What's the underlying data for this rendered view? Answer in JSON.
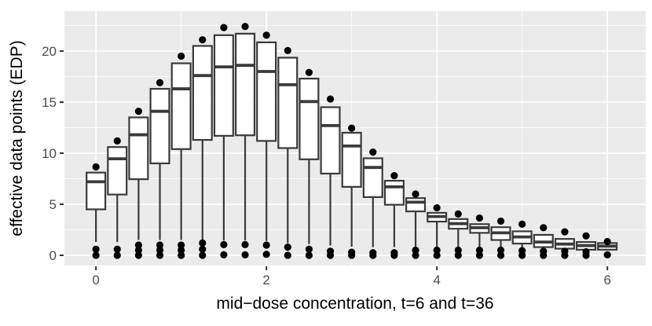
{
  "chart_data": {
    "type": "boxplot",
    "title": "",
    "xlabel": "mid−dose concentration, t=6 and t=36",
    "ylabel": "effective data points (EDP)",
    "xlim": [
      -0.37,
      6.45
    ],
    "ylim": [
      -1.0,
      23.92
    ],
    "x_ticks": [
      0,
      2,
      4,
      6
    ],
    "x_minor_gridlines": [
      1,
      3,
      5
    ],
    "y_ticks": [
      0,
      5,
      10,
      15,
      20
    ],
    "y_minor_gridlines": [
      2.5,
      7.5,
      12.5,
      17.5,
      22.5
    ],
    "grid": "on",
    "legend": "none",
    "box_width": 0.22,
    "colors": {
      "panel_bg": "#EBEBEB",
      "grid": "#FFFFFF",
      "box_border": "#3A3A3A",
      "box_fill": "#FFFFFF",
      "median": "#3A3A3A",
      "outlier_point": "#000000",
      "tick_mark": "#333333",
      "tick_label": "#4D4D4D",
      "axis_title": "#000000"
    },
    "boxes": [
      {
        "x": 0.0,
        "q1": 4.5,
        "median": 7.2,
        "q3": 8.1,
        "whisker_low": 1.3,
        "outlier_high": 8.65,
        "outliers_low": [
          0.6,
          0.0
        ]
      },
      {
        "x": 0.25,
        "q1": 5.95,
        "median": 9.45,
        "q3": 10.6,
        "whisker_low": 1.3,
        "outlier_high": 11.2,
        "outliers_low": [
          0.6,
          0.0
        ]
      },
      {
        "x": 0.5,
        "q1": 7.45,
        "median": 11.8,
        "q3": 13.5,
        "whisker_low": 1.5,
        "outlier_high": 14.1,
        "outliers_low": [
          1.0,
          0.5,
          0.0
        ]
      },
      {
        "x": 0.75,
        "q1": 9.0,
        "median": 14.1,
        "q3": 16.3,
        "whisker_low": 1.5,
        "outlier_high": 16.9,
        "outliers_low": [
          1.0,
          0.5,
          0.0
        ]
      },
      {
        "x": 1.0,
        "q1": 10.4,
        "median": 16.3,
        "q3": 18.8,
        "whisker_low": 1.5,
        "outlier_high": 19.5,
        "outliers_low": [
          1.0,
          0.5,
          0.0
        ]
      },
      {
        "x": 1.25,
        "q1": 11.3,
        "median": 17.6,
        "q3": 20.5,
        "whisker_low": 1.5,
        "outlier_high": 21.1,
        "outliers_low": [
          1.2,
          0.6,
          0.0
        ]
      },
      {
        "x": 1.5,
        "q1": 11.7,
        "median": 18.45,
        "q3": 21.55,
        "whisker_low": 1.45,
        "outlier_high": 22.3,
        "outliers_low": [
          1.05,
          0.05
        ]
      },
      {
        "x": 1.75,
        "q1": 11.75,
        "median": 18.6,
        "q3": 21.7,
        "whisker_low": 1.45,
        "outlier_high": 22.4,
        "outliers_low": [
          1.05,
          0.05
        ]
      },
      {
        "x": 2.0,
        "q1": 11.2,
        "median": 18.0,
        "q3": 20.85,
        "whisker_low": 1.4,
        "outlier_high": 21.55,
        "outliers_low": [
          1.0,
          0.1
        ]
      },
      {
        "x": 2.25,
        "q1": 10.5,
        "median": 16.7,
        "q3": 19.35,
        "whisker_low": 1.2,
        "outlier_high": 20.05,
        "outliers_low": [
          0.8,
          0.0
        ]
      },
      {
        "x": 2.5,
        "q1": 9.4,
        "median": 15.05,
        "q3": 17.3,
        "whisker_low": 1.1,
        "outlier_high": 17.9,
        "outliers_low": [
          0.6,
          0.0
        ]
      },
      {
        "x": 2.75,
        "q1": 8.0,
        "median": 12.7,
        "q3": 14.5,
        "whisker_low": 0.95,
        "outlier_high": 15.3,
        "outliers_low": [
          0.4,
          0.0
        ]
      },
      {
        "x": 3.0,
        "q1": 6.7,
        "median": 10.7,
        "q3": 12.0,
        "whisker_low": 0.85,
        "outlier_high": 12.45,
        "outliers_low": [
          0.3,
          0.0
        ]
      },
      {
        "x": 3.25,
        "q1": 5.7,
        "median": 8.6,
        "q3": 9.5,
        "whisker_low": 0.8,
        "outlier_high": 10.1,
        "outliers_low": [
          0.25,
          0.0
        ]
      },
      {
        "x": 3.5,
        "q1": 4.95,
        "median": 6.7,
        "q3": 7.3,
        "whisker_low": 0.8,
        "outlier_high": 7.8,
        "outliers_low": [
          0.25,
          0.0
        ]
      },
      {
        "x": 3.75,
        "q1": 4.3,
        "median": 5.2,
        "q3": 5.6,
        "whisker_low": 0.85,
        "outlier_high": 6.0,
        "outliers_low": [
          0.5,
          0.0
        ]
      },
      {
        "x": 4.0,
        "q1": 3.3,
        "median": 3.8,
        "q3": 4.16,
        "whisker_low": 0.85,
        "outlier_high": 4.65,
        "outliers_low": [
          0.5,
          0.0
        ]
      },
      {
        "x": 4.25,
        "q1": 2.6,
        "median": 3.1,
        "q3": 3.55,
        "whisker_low": 0.8,
        "outlier_high": 4.05,
        "outliers_low": [
          0.5,
          0.0
        ]
      },
      {
        "x": 4.5,
        "q1": 2.2,
        "median": 2.7,
        "q3": 3.05,
        "whisker_low": 0.8,
        "outlier_high": 3.65,
        "outliers_low": [
          0.5,
          0.0
        ]
      },
      {
        "x": 4.75,
        "q1": 1.5,
        "median": 2.2,
        "q3": 2.75,
        "whisker_low": 0.75,
        "outlier_high": 3.35,
        "outliers_low": [
          0.5,
          0.0
        ]
      },
      {
        "x": 5.0,
        "q1": 1.15,
        "median": 1.8,
        "q3": 2.35,
        "whisker_low": 0.7,
        "outlier_high": 3.05,
        "outliers_low": [
          0.45,
          0.0
        ]
      },
      {
        "x": 5.25,
        "q1": 0.8,
        "median": 1.3,
        "q3": 2.0,
        "whisker_low": 0.65,
        "outlier_high": 2.7,
        "outliers_low": [
          0.4,
          0.0
        ]
      },
      {
        "x": 5.5,
        "q1": 0.65,
        "median": 1.1,
        "q3": 1.6,
        "whisker_low": 0.6,
        "outlier_high": 2.3,
        "outliers_low": [
          0.4,
          0.0
        ]
      },
      {
        "x": 5.75,
        "q1": 0.55,
        "median": 0.95,
        "q3": 1.3,
        "whisker_low": 0.55,
        "outlier_high": 1.9,
        "outliers_low": [
          0.35,
          0.0
        ]
      },
      {
        "x": 6.0,
        "q1": 0.55,
        "median": 0.9,
        "q3": 1.2,
        "whisker_low": 0.5,
        "outlier_high": 1.35,
        "outliers_low": [
          0.05
        ]
      }
    ]
  }
}
